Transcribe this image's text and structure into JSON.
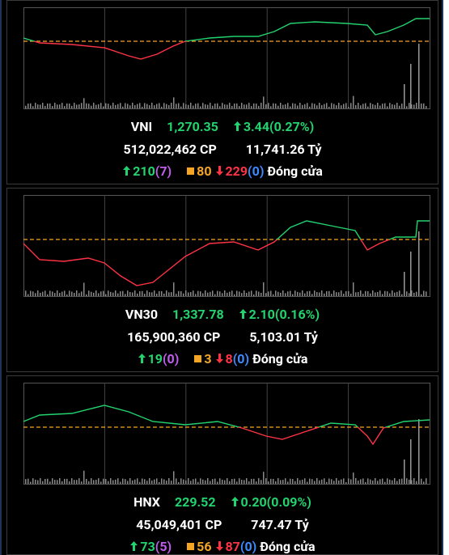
{
  "panels": [
    {
      "name": "VNI",
      "index": "1,270.35",
      "change": "3.44(0.27%)",
      "volume": "512,022,462",
      "volume_unit": "CP",
      "value": "11,741.26",
      "value_unit": "Tỷ",
      "up": "210",
      "up_ceiling": "(7)",
      "unchanged": "80",
      "down": "229",
      "down_floor": "(0)",
      "status": "Đóng cửa"
    },
    {
      "name": "VN30",
      "index": "1,337.78",
      "change": "2.10(0.16%)",
      "volume": "165,900,360",
      "volume_unit": "CP",
      "value": "5,103.01",
      "value_unit": "Tỷ",
      "up": "19",
      "up_ceiling": "(0)",
      "unchanged": "3",
      "down": "8",
      "down_floor": "(0)",
      "status": "Đóng cửa"
    },
    {
      "name": "HNX",
      "index": "229.52",
      "change": "0.20(0.09%)",
      "volume": "45,049,401",
      "volume_unit": "CP",
      "value": "747.47",
      "value_unit": "Tỷ",
      "up": "73",
      "up_ceiling": "(5)",
      "unchanged": "56",
      "down": "87",
      "down_floor": "(0)",
      "status": "Đóng cửa"
    }
  ]
}
